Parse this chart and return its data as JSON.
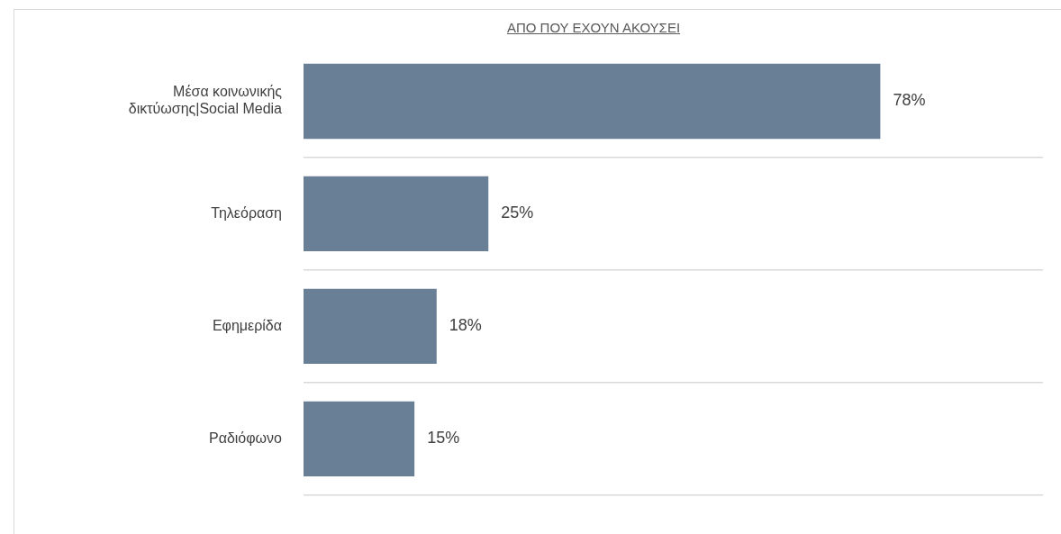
{
  "chart_data": {
    "type": "bar",
    "orientation": "horizontal",
    "title": "ΑΠΟ ΠΟΥ ΕΧΟΥΝ ΑΚΟΥΣΕΙ",
    "categories": [
      "Μέσα κοινωνικής δικτύωσης|Social Media",
      "Τηλεόραση",
      "Εφημερίδα",
      "Ραδιόφωνο"
    ],
    "values": [
      78,
      25,
      18,
      15
    ],
    "value_labels": [
      "78%",
      "25%",
      "18%",
      "15%"
    ],
    "color": "#687f96",
    "xlim": [
      0,
      100
    ],
    "grid": "y",
    "legend": false
  }
}
